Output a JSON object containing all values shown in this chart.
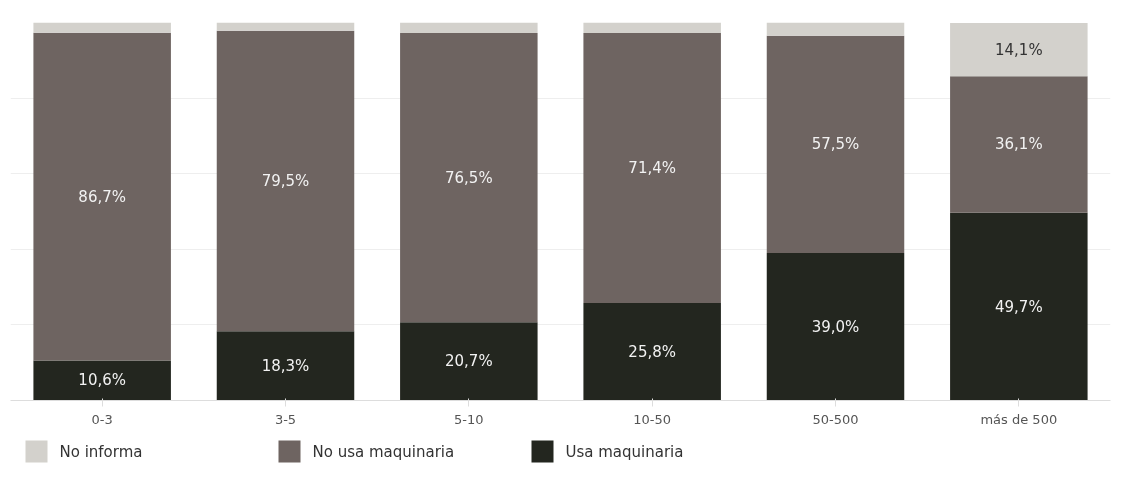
{
  "chart_data": {
    "type": "bar",
    "stacked": true,
    "categories": [
      "0-3",
      "3-5",
      "5-10",
      "10-50",
      "50-500",
      "más de 500"
    ],
    "series": [
      {
        "name": "Usa maquinaria",
        "color": "#23261f",
        "values": [
          10.6,
          18.3,
          20.7,
          25.8,
          39.0,
          49.7
        ],
        "value_labels": [
          "10,6%",
          "18,3%",
          "20,7%",
          "25,8%",
          "39,0%",
          "49,7%"
        ]
      },
      {
        "name": "No usa maquinaria",
        "color": "#6e6461",
        "values": [
          86.7,
          79.5,
          76.5,
          71.4,
          57.5,
          36.1
        ],
        "value_labels": [
          "86,7%",
          "79,5%",
          "76,5%",
          "71,4%",
          "57,5%",
          "36,1%"
        ]
      },
      {
        "name": "No informa",
        "color": "#d3d1cc",
        "values": [
          2.7,
          2.2,
          2.8,
          2.8,
          3.5,
          14.1
        ],
        "value_labels": [
          null,
          null,
          null,
          null,
          null,
          "14,1%"
        ]
      }
    ],
    "ylim": [
      0,
      100
    ],
    "yticks": [
      {
        "value": 0,
        "label": null
      },
      {
        "value": 20,
        "label": null
      },
      {
        "value": 40,
        "label": null
      },
      {
        "value": 60,
        "label": null
      },
      {
        "value": 80,
        "label": null
      }
    ],
    "tick_labels": "x",
    "grid": "y",
    "legend": "bottom"
  }
}
